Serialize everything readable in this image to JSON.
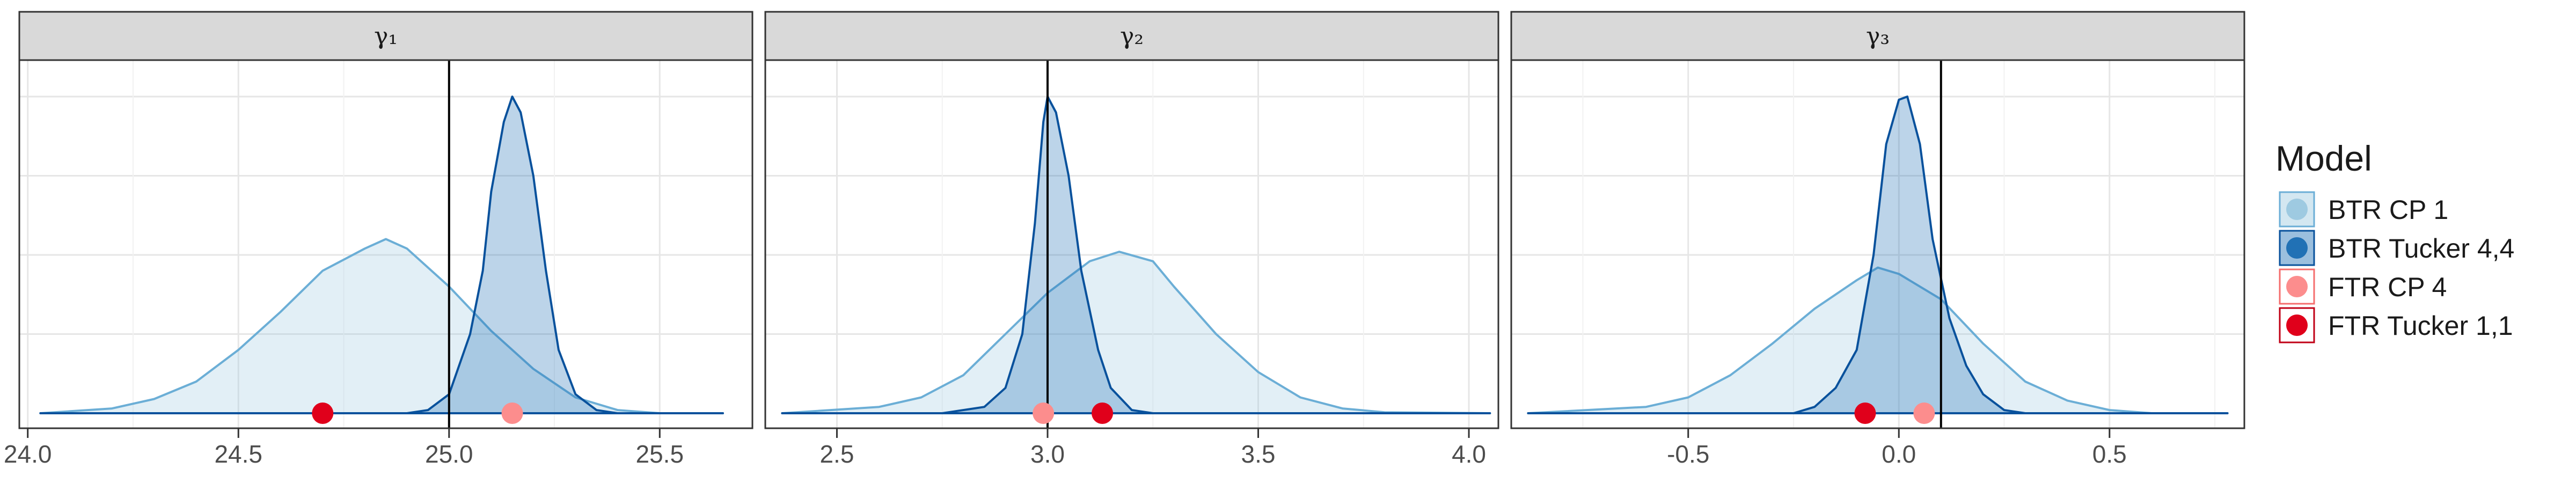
{
  "chart_data": {
    "type": "area",
    "facets": [
      {
        "label": "γ₁",
        "xlim": [
          23.98,
          25.72
        ],
        "x_ticks": [
          24.0,
          24.5,
          25.0,
          25.5
        ],
        "x_tick_labels": [
          "24.0",
          "24.5",
          "25.0",
          "25.5"
        ],
        "true_value": 25.0,
        "densities": [
          {
            "model": "BTR CP 1",
            "points": [
              [
                24.03,
                0.0
              ],
              [
                24.2,
                0.015
              ],
              [
                24.3,
                0.045
              ],
              [
                24.4,
                0.1
              ],
              [
                24.5,
                0.2
              ],
              [
                24.6,
                0.32
              ],
              [
                24.7,
                0.45
              ],
              [
                24.8,
                0.52
              ],
              [
                24.85,
                0.55
              ],
              [
                24.9,
                0.52
              ],
              [
                25.0,
                0.4
              ],
              [
                25.05,
                0.33
              ],
              [
                25.1,
                0.26
              ],
              [
                25.2,
                0.14
              ],
              [
                25.3,
                0.05
              ],
              [
                25.4,
                0.01
              ],
              [
                25.5,
                0.0
              ],
              [
                25.65,
                0.0
              ]
            ]
          },
          {
            "model": "BTR Tucker 4,4",
            "points": [
              [
                24.03,
                0.0
              ],
              [
                24.9,
                0.0
              ],
              [
                24.95,
                0.01
              ],
              [
                25.0,
                0.06
              ],
              [
                25.05,
                0.25
              ],
              [
                25.08,
                0.45
              ],
              [
                25.1,
                0.7
              ],
              [
                25.13,
                0.92
              ],
              [
                25.15,
                1.0
              ],
              [
                25.17,
                0.95
              ],
              [
                25.2,
                0.75
              ],
              [
                25.23,
                0.45
              ],
              [
                25.26,
                0.2
              ],
              [
                25.3,
                0.06
              ],
              [
                25.35,
                0.01
              ],
              [
                25.4,
                0.0
              ],
              [
                25.65,
                0.0
              ]
            ]
          }
        ],
        "point_estimates": [
          {
            "model": "FTR Tucker 1,1",
            "x": 24.7
          },
          {
            "model": "FTR CP 4",
            "x": 25.15
          }
        ]
      },
      {
        "label": "γ₂",
        "xlim": [
          2.33,
          4.07
        ],
        "x_ticks": [
          2.5,
          3.0,
          3.5,
          4.0
        ],
        "x_tick_labels": [
          "2.5",
          "3.0",
          "3.5",
          "4.0"
        ],
        "true_value": 3.0,
        "densities": [
          {
            "model": "BTR CP 1",
            "points": [
              [
                2.37,
                0.0
              ],
              [
                2.6,
                0.02
              ],
              [
                2.7,
                0.05
              ],
              [
                2.8,
                0.12
              ],
              [
                2.9,
                0.25
              ],
              [
                3.0,
                0.38
              ],
              [
                3.1,
                0.48
              ],
              [
                3.17,
                0.51
              ],
              [
                3.25,
                0.48
              ],
              [
                3.3,
                0.4
              ],
              [
                3.4,
                0.25
              ],
              [
                3.5,
                0.13
              ],
              [
                3.6,
                0.05
              ],
              [
                3.7,
                0.015
              ],
              [
                3.8,
                0.003
              ],
              [
                4.05,
                0.0
              ]
            ]
          },
          {
            "model": "BTR Tucker 4,4",
            "points": [
              [
                2.37,
                0.0
              ],
              [
                2.75,
                0.0
              ],
              [
                2.85,
                0.02
              ],
              [
                2.9,
                0.08
              ],
              [
                2.94,
                0.25
              ],
              [
                2.97,
                0.6
              ],
              [
                2.99,
                0.92
              ],
              [
                3.0,
                1.0
              ],
              [
                3.02,
                0.95
              ],
              [
                3.05,
                0.75
              ],
              [
                3.08,
                0.45
              ],
              [
                3.12,
                0.2
              ],
              [
                3.15,
                0.08
              ],
              [
                3.2,
                0.01
              ],
              [
                3.25,
                0.0
              ],
              [
                4.05,
                0.0
              ]
            ]
          }
        ],
        "point_estimates": [
          {
            "model": "FTR CP 4",
            "x": 2.99
          },
          {
            "model": "FTR Tucker 1,1",
            "x": 3.13
          }
        ]
      },
      {
        "label": "γ₃",
        "xlim": [
          -0.92,
          0.82
        ],
        "x_ticks": [
          -0.5,
          0.0,
          0.5
        ],
        "x_tick_labels": [
          "-0.5",
          "0.0",
          "0.5"
        ],
        "true_value": 0.1,
        "densities": [
          {
            "model": "BTR CP 1",
            "points": [
              [
                -0.88,
                0.0
              ],
              [
                -0.6,
                0.02
              ],
              [
                -0.5,
                0.05
              ],
              [
                -0.4,
                0.12
              ],
              [
                -0.3,
                0.22
              ],
              [
                -0.2,
                0.33
              ],
              [
                -0.1,
                0.42
              ],
              [
                -0.05,
                0.46
              ],
              [
                0.0,
                0.44
              ],
              [
                0.1,
                0.36
              ],
              [
                0.2,
                0.22
              ],
              [
                0.3,
                0.1
              ],
              [
                0.4,
                0.04
              ],
              [
                0.5,
                0.01
              ],
              [
                0.6,
                0.0
              ],
              [
                0.78,
                0.0
              ]
            ]
          },
          {
            "model": "BTR Tucker 4,4",
            "points": [
              [
                -0.88,
                0.0
              ],
              [
                -0.25,
                0.0
              ],
              [
                -0.2,
                0.02
              ],
              [
                -0.15,
                0.08
              ],
              [
                -0.1,
                0.2
              ],
              [
                -0.06,
                0.5
              ],
              [
                -0.03,
                0.85
              ],
              [
                0.0,
                0.99
              ],
              [
                0.02,
                1.0
              ],
              [
                0.05,
                0.85
              ],
              [
                0.08,
                0.55
              ],
              [
                0.12,
                0.3
              ],
              [
                0.16,
                0.15
              ],
              [
                0.2,
                0.06
              ],
              [
                0.25,
                0.01
              ],
              [
                0.3,
                0.0
              ],
              [
                0.78,
                0.0
              ]
            ]
          }
        ],
        "point_estimates": [
          {
            "model": "FTR Tucker 1,1",
            "x": -0.08
          },
          {
            "model": "FTR CP 4",
            "x": 0.06
          }
        ]
      }
    ],
    "legend": {
      "title": "Model",
      "placement": "right",
      "entries": [
        {
          "label": "BTR CP 1",
          "fill": "#9ecae1",
          "stroke": "#6baed6",
          "fill_opacity": 0.3
        },
        {
          "label": "BTR Tucker 4,4",
          "fill": "#2171b5",
          "stroke": "#08519c",
          "fill_opacity": 0.3
        },
        {
          "label": "FTR CP 4",
          "fill": "#fc8d8d",
          "stroke": "#f46d6d",
          "fill_opacity": 1
        },
        {
          "label": "FTR Tucker 1,1",
          "fill": "#e0001b",
          "stroke": "#c00016",
          "fill_opacity": 1
        }
      ]
    }
  }
}
